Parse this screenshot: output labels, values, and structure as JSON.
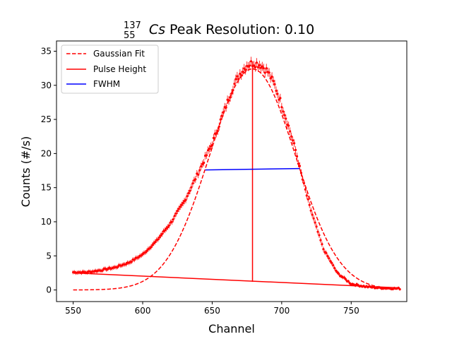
{
  "chart_data": {
    "type": "scatter",
    "title": {
      "isotope_mass": "137",
      "isotope_atomic": "55",
      "isotope_symbol": "Cs",
      "text": "Peak Resolution: 0.10"
    },
    "xlabel": "Channel",
    "ylabel": "Counts (#/s)",
    "xlim": [
      538,
      790
    ],
    "ylim": [
      -1.7,
      36.5
    ],
    "xticks": [
      "550",
      "600",
      "650",
      "700",
      "750"
    ],
    "yticks": [
      "0",
      "5",
      "10",
      "15",
      "20",
      "25",
      "30",
      "35"
    ],
    "grid": false,
    "legend_position": "upper left",
    "legend": [
      "Gaussian Fit",
      "Pulse Height",
      "FWHM"
    ],
    "colors": {
      "data": "#ff0000",
      "fit": "#ff0000",
      "pulse": "#ff0000",
      "fwhm": "#0000ff"
    },
    "gaussian_fit": {
      "amplitude": 32.4,
      "mean": 679,
      "sigma": 31
    },
    "baseline": {
      "x": [
        550,
        785
      ],
      "y": [
        2.5,
        0.3
      ]
    },
    "pulse_height": {
      "x": 679,
      "y": [
        1.2,
        33.5
      ]
    },
    "fwhm": {
      "x": [
        645,
        713
      ],
      "y": [
        17.6,
        17.8
      ]
    },
    "measured": {
      "x": [
        550,
        560,
        570,
        580,
        590,
        600,
        610,
        620,
        630,
        640,
        650,
        660,
        665,
        670,
        675,
        680,
        685,
        690,
        695,
        700,
        705,
        710,
        715,
        720,
        730,
        740,
        750,
        760,
        770,
        785
      ],
      "y": [
        2.6,
        2.6,
        2.9,
        3.3,
        4.0,
        5.2,
        7.2,
        9.8,
        13.0,
        17.2,
        21.5,
        27.0,
        29.8,
        31.7,
        33.0,
        33.3,
        33.0,
        32.0,
        30.0,
        27.2,
        24.0,
        20.5,
        16.2,
        12.3,
        6.0,
        2.5,
        0.9,
        0.5,
        0.3,
        0.2
      ]
    }
  }
}
